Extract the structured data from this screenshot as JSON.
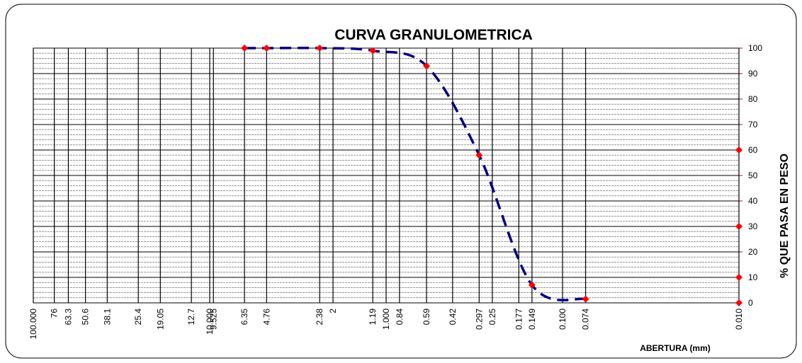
{
  "chart_data": {
    "type": "line",
    "title": "CURVA GRANULOMETRICA",
    "x_label": "ABERTURA (mm)",
    "y_label": "% QUE PASA EN PESO",
    "x_log": true,
    "x_reversed": true,
    "y_axis_side": "right",
    "xlim": [
      100,
      0.01
    ],
    "xticks": [
      {
        "value": 100,
        "label": "100.000"
      },
      76,
      63.3,
      50.6,
      38.1,
      25.4,
      19.05,
      12.7,
      {
        "value": 10,
        "label": "10.000"
      },
      9.525,
      6.35,
      4.76,
      2.38,
      2,
      1.19,
      {
        "value": 1,
        "label": "1.000"
      },
      0.84,
      0.59,
      0.42,
      0.297,
      0.25,
      0.177,
      0.149,
      {
        "value": 0.1,
        "label": "0.100"
      },
      0.074,
      {
        "value": 0.01,
        "label": "0.010"
      }
    ],
    "ylim": [
      0,
      100
    ],
    "yticks": [
      0,
      10,
      20,
      30,
      40,
      50,
      60,
      70,
      80,
      90,
      100
    ],
    "grid": true,
    "series": [
      {
        "x": [
          6.35,
          4.76,
          2.38,
          1.19,
          0.59,
          0.297,
          0.149,
          0.074
        ],
        "values": [
          100,
          100,
          100,
          99,
          93,
          58,
          7,
          1.5
        ],
        "color": "#ff0000",
        "line_color": "#000080",
        "line_style": "dashed"
      },
      {
        "x": [
          0.01,
          0.01,
          0.01,
          0.01
        ],
        "values": [
          0,
          10,
          30,
          60
        ],
        "color": "#ff0000"
      }
    ]
  }
}
